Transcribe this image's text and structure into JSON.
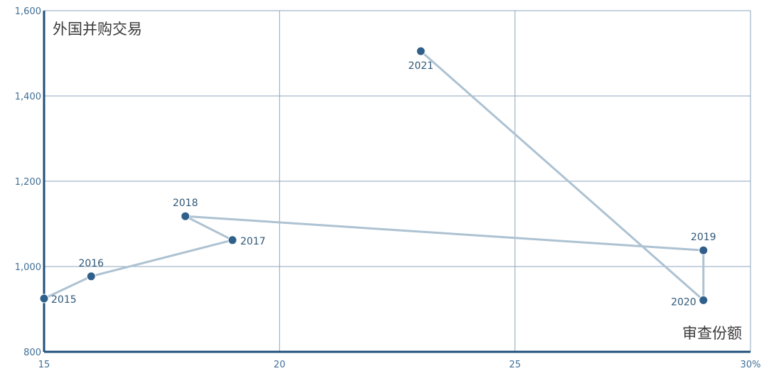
{
  "chart_data": {
    "type": "line",
    "ylabel": "外国并购交易",
    "xlabel": "审查份额",
    "xlim": [
      15,
      30
    ],
    "ylim": [
      800,
      1600
    ],
    "x_ticks": [
      "15",
      "20",
      "25",
      "30%"
    ],
    "y_ticks": [
      "800",
      "1,000",
      "1,200",
      "1,400",
      "1,600"
    ],
    "grid": true,
    "colors": {
      "line": "#adc2d2",
      "point": "#2f5f8a",
      "axis": "#1f4e79",
      "grid": "#8ca5bb"
    },
    "points": [
      {
        "label": "2015",
        "x": 15.0,
        "y": 925
      },
      {
        "label": "2016",
        "x": 16.0,
        "y": 977
      },
      {
        "label": "2017",
        "x": 19.0,
        "y": 1062
      },
      {
        "label": "2018",
        "x": 18.0,
        "y": 1118
      },
      {
        "label": "2019",
        "x": 29.0,
        "y": 1038
      },
      {
        "label": "2020",
        "x": 29.0,
        "y": 921
      },
      {
        "label": "2021",
        "x": 23.0,
        "y": 1505
      }
    ]
  }
}
